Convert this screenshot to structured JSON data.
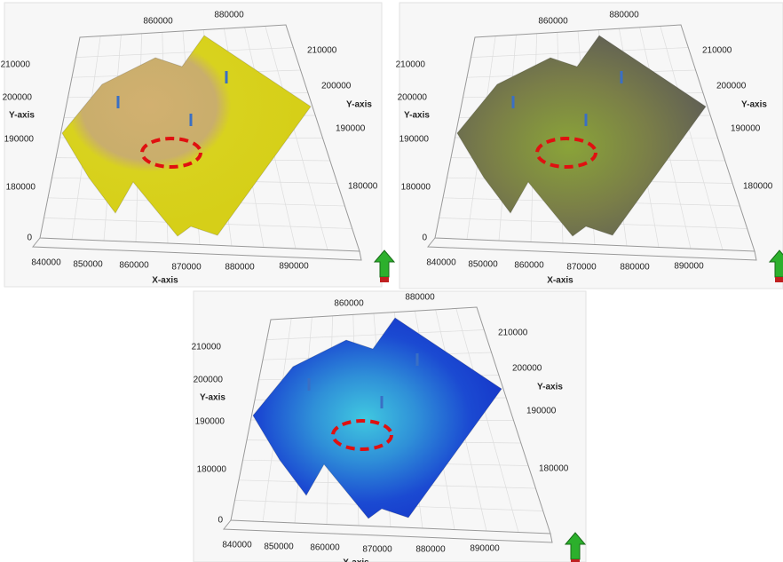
{
  "panels": [
    {
      "top_ticks": [
        "860000",
        "880000"
      ],
      "left_ticks": [
        "210000",
        "200000",
        "190000",
        "180000",
        "0"
      ],
      "left_axis_label": "Y-axis",
      "right_ticks": [
        "210000",
        "200000",
        "190000",
        "180000"
      ],
      "right_axis_label": "Y-axis",
      "bottom_ticks": [
        "840000",
        "850000",
        "860000",
        "870000",
        "880000",
        "890000"
      ],
      "bottom_axis_label": "X-axis"
    },
    {
      "top_ticks": [
        "860000",
        "880000"
      ],
      "left_ticks": [
        "210000",
        "200000",
        "190000",
        "180000",
        "0"
      ],
      "left_axis_label": "Y-axis",
      "right_ticks": [
        "210000",
        "200000",
        "190000",
        "180000"
      ],
      "right_axis_label": "Y-axis",
      "bottom_ticks": [
        "840000",
        "850000",
        "860000",
        "870000",
        "880000",
        "890000"
      ],
      "bottom_axis_label": "X-axis"
    },
    {
      "top_ticks": [
        "860000",
        "880000"
      ],
      "left_ticks": [
        "210000",
        "200000",
        "190000",
        "180000",
        "0"
      ],
      "left_axis_label": "Y-axis",
      "right_ticks": [
        "210000",
        "200000",
        "190000",
        "180000"
      ],
      "right_axis_label": "Y-axis",
      "bottom_ticks": [
        "840000",
        "850000",
        "860000",
        "870000",
        "880000",
        "890000"
      ],
      "bottom_axis_label": "X-axis"
    }
  ]
}
